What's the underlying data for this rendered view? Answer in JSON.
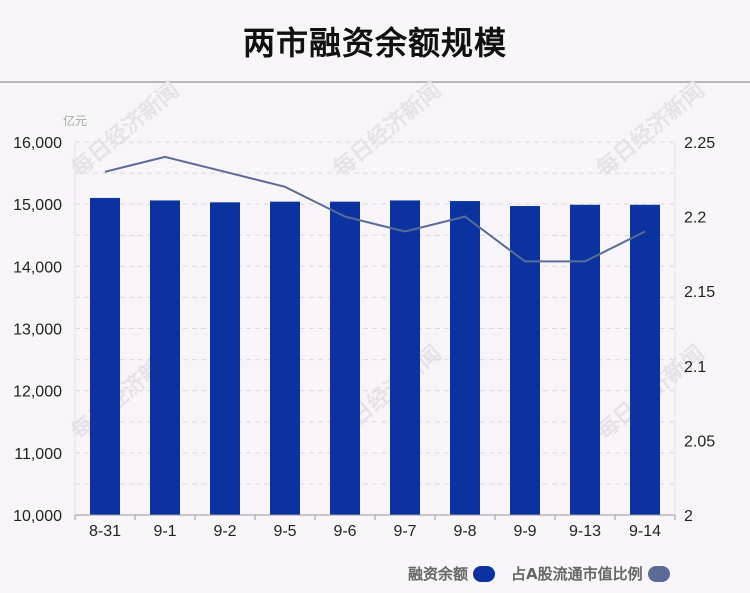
{
  "title": "两市融资余额规模",
  "watermark_text": "每日经济新闻",
  "colors": {
    "bar": "#0b33a0",
    "line": "#5a6b98",
    "grid": "#dcd8e0",
    "background": "#f8f5f8"
  },
  "legend": {
    "bar_label": "融资余额",
    "line_label": "占A股流通市值比例"
  },
  "chart_data": {
    "type": "bar",
    "title": "两市融资余额规模",
    "categories": [
      "8-31",
      "9-1",
      "9-2",
      "9-5",
      "9-6",
      "9-7",
      "9-8",
      "9-9",
      "9-13",
      "9-14"
    ],
    "series": [
      {
        "name": "融资余额",
        "type": "bar",
        "axis": "left",
        "values": [
          15100,
          15060,
          15030,
          15040,
          15040,
          15060,
          15050,
          14970,
          14990,
          14990
        ]
      },
      {
        "name": "占A股流通市值比例",
        "type": "line",
        "axis": "right",
        "values": [
          2.23,
          2.24,
          2.23,
          2.22,
          2.2,
          2.19,
          2.2,
          2.17,
          2.17,
          2.19
        ]
      }
    ],
    "y_left": {
      "unit": "亿元",
      "range": [
        10000,
        16000
      ],
      "ticks": [
        10000,
        11000,
        12000,
        13000,
        14000,
        15000,
        16000
      ],
      "tick_labels": [
        "10,000",
        "11,000",
        "12,000",
        "13,000",
        "14,000",
        "15,000",
        "16,000"
      ]
    },
    "y_right": {
      "range": [
        2,
        2.25
      ],
      "ticks": [
        2,
        2.05,
        2.1,
        2.15,
        2.2,
        2.25
      ],
      "tick_labels": [
        "2",
        "2.05",
        "2.1",
        "2.15",
        "2.2",
        "2.25"
      ]
    },
    "grid": true,
    "legend_position": "bottom-right"
  }
}
